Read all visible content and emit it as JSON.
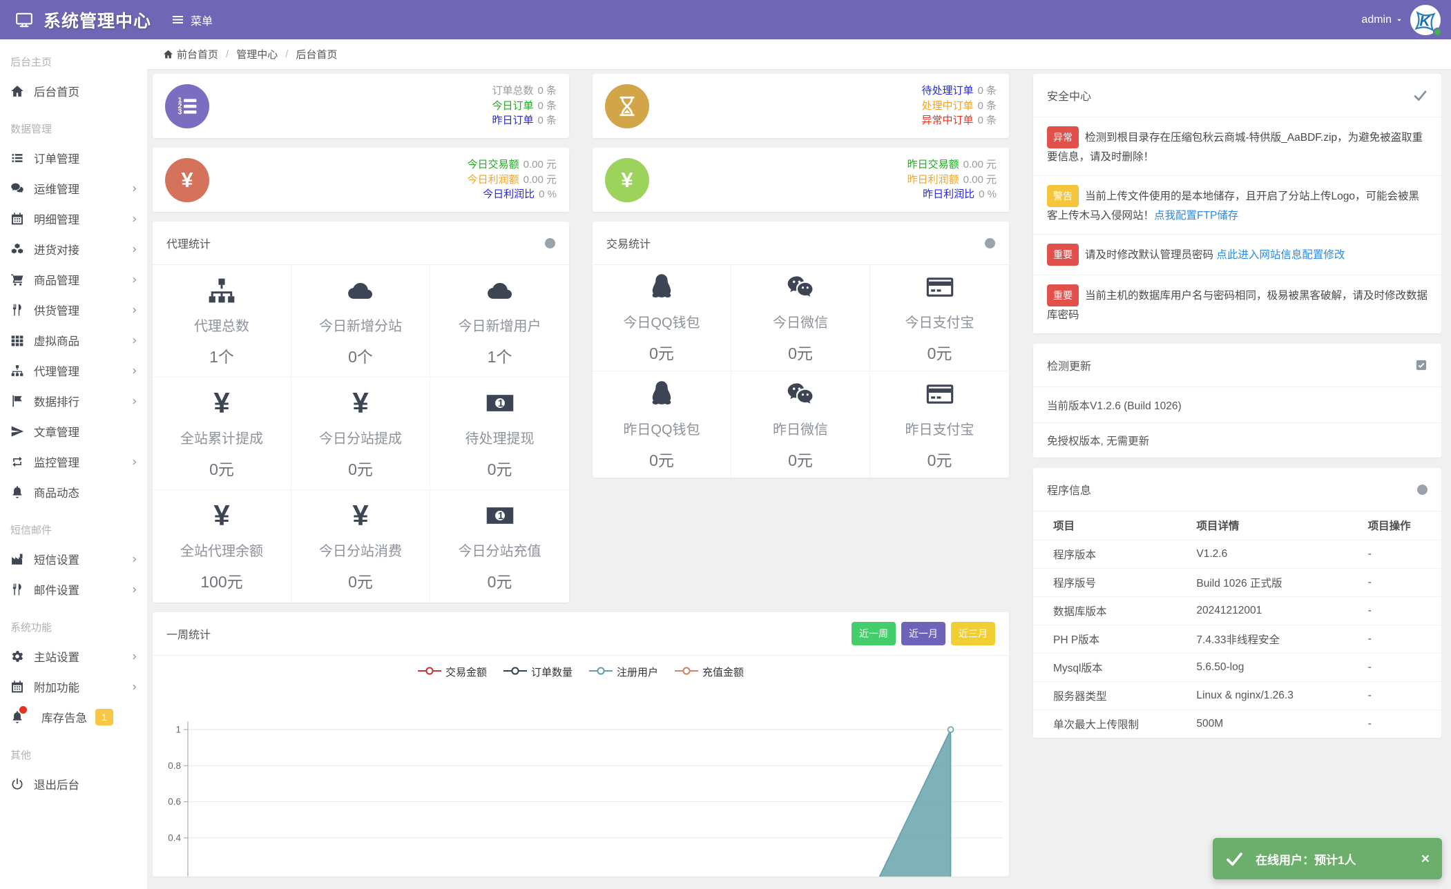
{
  "topbar": {
    "brand": "系统管理中心",
    "menu_label": "菜单",
    "user": "admin"
  },
  "breadcrumb": {
    "items": [
      "前台首页",
      "管理中心",
      "后台首页"
    ]
  },
  "sidebar": {
    "sections": [
      {
        "label": "后台主页",
        "items": [
          {
            "key": "home",
            "icon": "home",
            "label": "后台首页",
            "chevron": false
          }
        ]
      },
      {
        "label": "数据管理",
        "items": [
          {
            "key": "order-manage",
            "icon": "list",
            "label": "订单管理",
            "chevron": false
          },
          {
            "key": "ops-manage",
            "icon": "comments",
            "label": "运维管理",
            "chevron": true
          },
          {
            "key": "detail-manage",
            "icon": "calendar",
            "label": "明细管理",
            "chevron": true
          },
          {
            "key": "purchase-dock",
            "icon": "cubes",
            "label": "进货对接",
            "chevron": true
          },
          {
            "key": "goods-manage",
            "icon": "cart",
            "label": "商品管理",
            "chevron": true
          },
          {
            "key": "supply-manage",
            "icon": "utensils",
            "label": "供货管理",
            "chevron": true
          },
          {
            "key": "virtual-goods",
            "icon": "grid",
            "label": "虚拟商品",
            "chevron": true
          },
          {
            "key": "agent-manage",
            "icon": "sitemap",
            "label": "代理管理",
            "chevron": true
          },
          {
            "key": "data-rank",
            "icon": "flag",
            "label": "数据排行",
            "chevron": true
          },
          {
            "key": "article-manage",
            "icon": "paper-plane",
            "label": "文章管理",
            "chevron": false
          },
          {
            "key": "monitor-manage",
            "icon": "retweet",
            "label": "监控管理",
            "chevron": true
          },
          {
            "key": "goods-news",
            "icon": "bell",
            "label": "商品动态",
            "chevron": false
          }
        ]
      },
      {
        "label": "短信邮件",
        "items": [
          {
            "key": "sms-settings",
            "icon": "industry",
            "label": "短信设置",
            "chevron": true
          },
          {
            "key": "mail-settings",
            "icon": "utensils",
            "label": "邮件设置",
            "chevron": true
          }
        ]
      },
      {
        "label": "系统功能",
        "items": [
          {
            "key": "site-settings",
            "icon": "gear",
            "label": "主站设置",
            "chevron": true
          },
          {
            "key": "addon-features",
            "icon": "calendar",
            "label": "附加功能",
            "chevron": true
          },
          {
            "key": "stock-alert",
            "icon": "bell",
            "label": "库存告急",
            "chevron": false,
            "dot": true,
            "badge": "1"
          }
        ]
      },
      {
        "label": "其他",
        "items": [
          {
            "key": "logout",
            "icon": "power",
            "label": "退出后台",
            "chevron": false
          }
        ]
      }
    ]
  },
  "stat_cards": [
    {
      "key": "orders",
      "icon": "list-ol",
      "icon_bg": "#7b6ec0",
      "rows": [
        {
          "label": "订单总数",
          "label_color": "#9a9a9a",
          "value": "0 条"
        },
        {
          "label": "今日订单",
          "label_color": "#1faa1f",
          "value": "0 条"
        },
        {
          "label": "昨日订单",
          "label_color": "#2626e0",
          "value": "0 条"
        }
      ]
    },
    {
      "key": "pending-orders",
      "icon": "hourglass",
      "icon_bg": "#d2a548",
      "rows": [
        {
          "label": "待处理订单",
          "label_color": "#2626e0",
          "value": "0 条"
        },
        {
          "label": "处理中订单",
          "label_color": "#f3a32a",
          "value": "0 条"
        },
        {
          "label": "异常中订单",
          "label_color": "#f4301c",
          "value": "0 条"
        }
      ]
    },
    {
      "key": "today-trade",
      "icon": "yen",
      "icon_bg": "#d5725b",
      "rows": [
        {
          "label": "今日交易额",
          "label_color": "#1faa1f",
          "value": "0.00 元"
        },
        {
          "label": "今日利润额",
          "label_color": "#f3a32a",
          "value": "0.00 元"
        },
        {
          "label": "今日利润比",
          "label_color": "#2626e0",
          "value": "0 %"
        }
      ]
    },
    {
      "key": "yesterday-trade",
      "icon": "yen",
      "icon_bg": "#9cd35c",
      "rows": [
        {
          "label": "昨日交易额",
          "label_color": "#1faa1f",
          "value": "0.00 元"
        },
        {
          "label": "昨日利润额",
          "label_color": "#f3a32a",
          "value": "0.00 元"
        },
        {
          "label": "昨日利润比",
          "label_color": "#2626e0",
          "value": "0 %"
        }
      ]
    }
  ],
  "agent_panel": {
    "title": "代理统计",
    "cells": [
      {
        "key": "total-agents",
        "icon": "sitemap",
        "label": "代理总数",
        "value": "1个"
      },
      {
        "key": "new-sites-today",
        "icon": "cloud",
        "label": "今日新增分站",
        "value": "0个"
      },
      {
        "key": "new-users-today",
        "icon": "cloud",
        "label": "今日新增用户",
        "value": "1个"
      },
      {
        "key": "total-commission",
        "icon": "yen",
        "label": "全站累计提成",
        "value": "0元"
      },
      {
        "key": "site-commission-today",
        "icon": "yen",
        "label": "今日分站提成",
        "value": "0元"
      },
      {
        "key": "pending-withdraw",
        "icon": "money",
        "label": "待处理提现",
        "value": "0元"
      },
      {
        "key": "agent-balance",
        "icon": "yen",
        "label": "全站代理余额",
        "value": "100元"
      },
      {
        "key": "site-consume-today",
        "icon": "yen",
        "label": "今日分站消费",
        "value": "0元"
      },
      {
        "key": "site-recharge-today",
        "icon": "money",
        "label": "今日分站充值",
        "value": "0元"
      }
    ]
  },
  "trade_panel": {
    "title": "交易统计",
    "cells": [
      {
        "key": "qq-today",
        "icon": "qq",
        "label": "今日QQ钱包",
        "value": "0元"
      },
      {
        "key": "wechat-today",
        "icon": "wechat",
        "label": "今日微信",
        "value": "0元"
      },
      {
        "key": "alipay-today",
        "icon": "card",
        "label": "今日支付宝",
        "value": "0元"
      },
      {
        "key": "qq-yesterday",
        "icon": "qq",
        "label": "昨日QQ钱包",
        "value": "0元"
      },
      {
        "key": "wechat-yesterday",
        "icon": "wechat",
        "label": "昨日微信",
        "value": "0元"
      },
      {
        "key": "alipay-yesterday",
        "icon": "card",
        "label": "昨日支付宝",
        "value": "0元"
      }
    ]
  },
  "week_panel": {
    "title": "一周统计",
    "buttons": [
      {
        "key": "last-week",
        "label": "近一周",
        "color": "#44cd6b"
      },
      {
        "key": "last-month",
        "label": "近一月",
        "color": "#6e63bb"
      },
      {
        "key": "last-quarter",
        "label": "近三月",
        "color": "#f1ce33"
      }
    ]
  },
  "chart_data": {
    "type": "area",
    "title": "一周统计",
    "legend": [
      {
        "label": "交易金额",
        "color": "#c23531"
      },
      {
        "label": "订单数量",
        "color": "#2f4554"
      },
      {
        "label": "注册用户",
        "color": "#61a0a8"
      },
      {
        "label": "充值金额",
        "color": "#d48265"
      }
    ],
    "yticks": [
      1,
      0.8,
      0.6,
      0.4
    ],
    "ylim": [
      0,
      1
    ],
    "grid": true,
    "legend_position": "top-center",
    "series": [
      {
        "name": "交易金额",
        "color": "#c23531",
        "values": [
          0,
          0,
          0,
          0,
          0,
          0,
          0
        ]
      },
      {
        "name": "订单数量",
        "color": "#2f4554",
        "values": [
          0,
          0,
          0,
          0,
          0,
          0,
          0
        ]
      },
      {
        "name": "注册用户",
        "color": "#61a0a8",
        "values": [
          0,
          0,
          0,
          0,
          0,
          0,
          1
        ]
      },
      {
        "name": "充值金额",
        "color": "#d48265",
        "values": [
          0,
          0,
          0,
          0,
          0,
          0,
          0
        ]
      }
    ],
    "visible_area": {
      "series": "注册用户",
      "start_x_frac": 0.829,
      "peak_x_frac": 0.936,
      "peak_value": 1
    }
  },
  "security_panel": {
    "title": "安全中心",
    "alerts": [
      {
        "badge": "异常",
        "badge_color": "#e1504a",
        "text": "检测到根目录存在压缩包秋云商城-特供版_AaBDF.zip，为避免被盗取重要信息，请及时删除！",
        "link": ""
      },
      {
        "badge": "警告",
        "badge_color": "#f5c63b",
        "text": "当前上传文件使用的是本地储存，且开启了分站上传Logo，可能会被黑客上传木马入侵网站！",
        "link": "点我配置FTP储存"
      },
      {
        "badge": "重要",
        "badge_color": "#e1504a",
        "text": "请及时修改默认管理员密码 ",
        "link": "点此进入网站信息配置修改"
      },
      {
        "badge": "重要",
        "badge_color": "#e1504a",
        "text": "当前主机的数据库用户名与密码相同，极易被黑客破解，请及时修改数据库密码",
        "link": ""
      }
    ]
  },
  "update_panel": {
    "title": "检测更新",
    "rows": [
      "当前版本V1.2.6 (Build 1026)",
      "免授权版本, 无需更新"
    ]
  },
  "program_panel": {
    "title": "程序信息",
    "headers": [
      "项目",
      "项目详情",
      "项目操作"
    ],
    "rows": [
      [
        "程序版本",
        "V1.2.6",
        "-"
      ],
      [
        "程序版号",
        "Build 1026 正式版",
        "-"
      ],
      [
        "数据库版本",
        "20241212001",
        "-"
      ],
      [
        "PH P版本",
        "7.4.33非线程安全",
        "-"
      ],
      [
        "Mysql版本",
        "5.6.50-log",
        "-"
      ],
      [
        "服务器类型",
        "Linux & nginx/1.26.3",
        "-"
      ],
      [
        "单次最大上传限制",
        "500M",
        "-"
      ]
    ]
  },
  "toast": {
    "text": "在线用户：预计1人",
    "color": "#6cae6c"
  }
}
